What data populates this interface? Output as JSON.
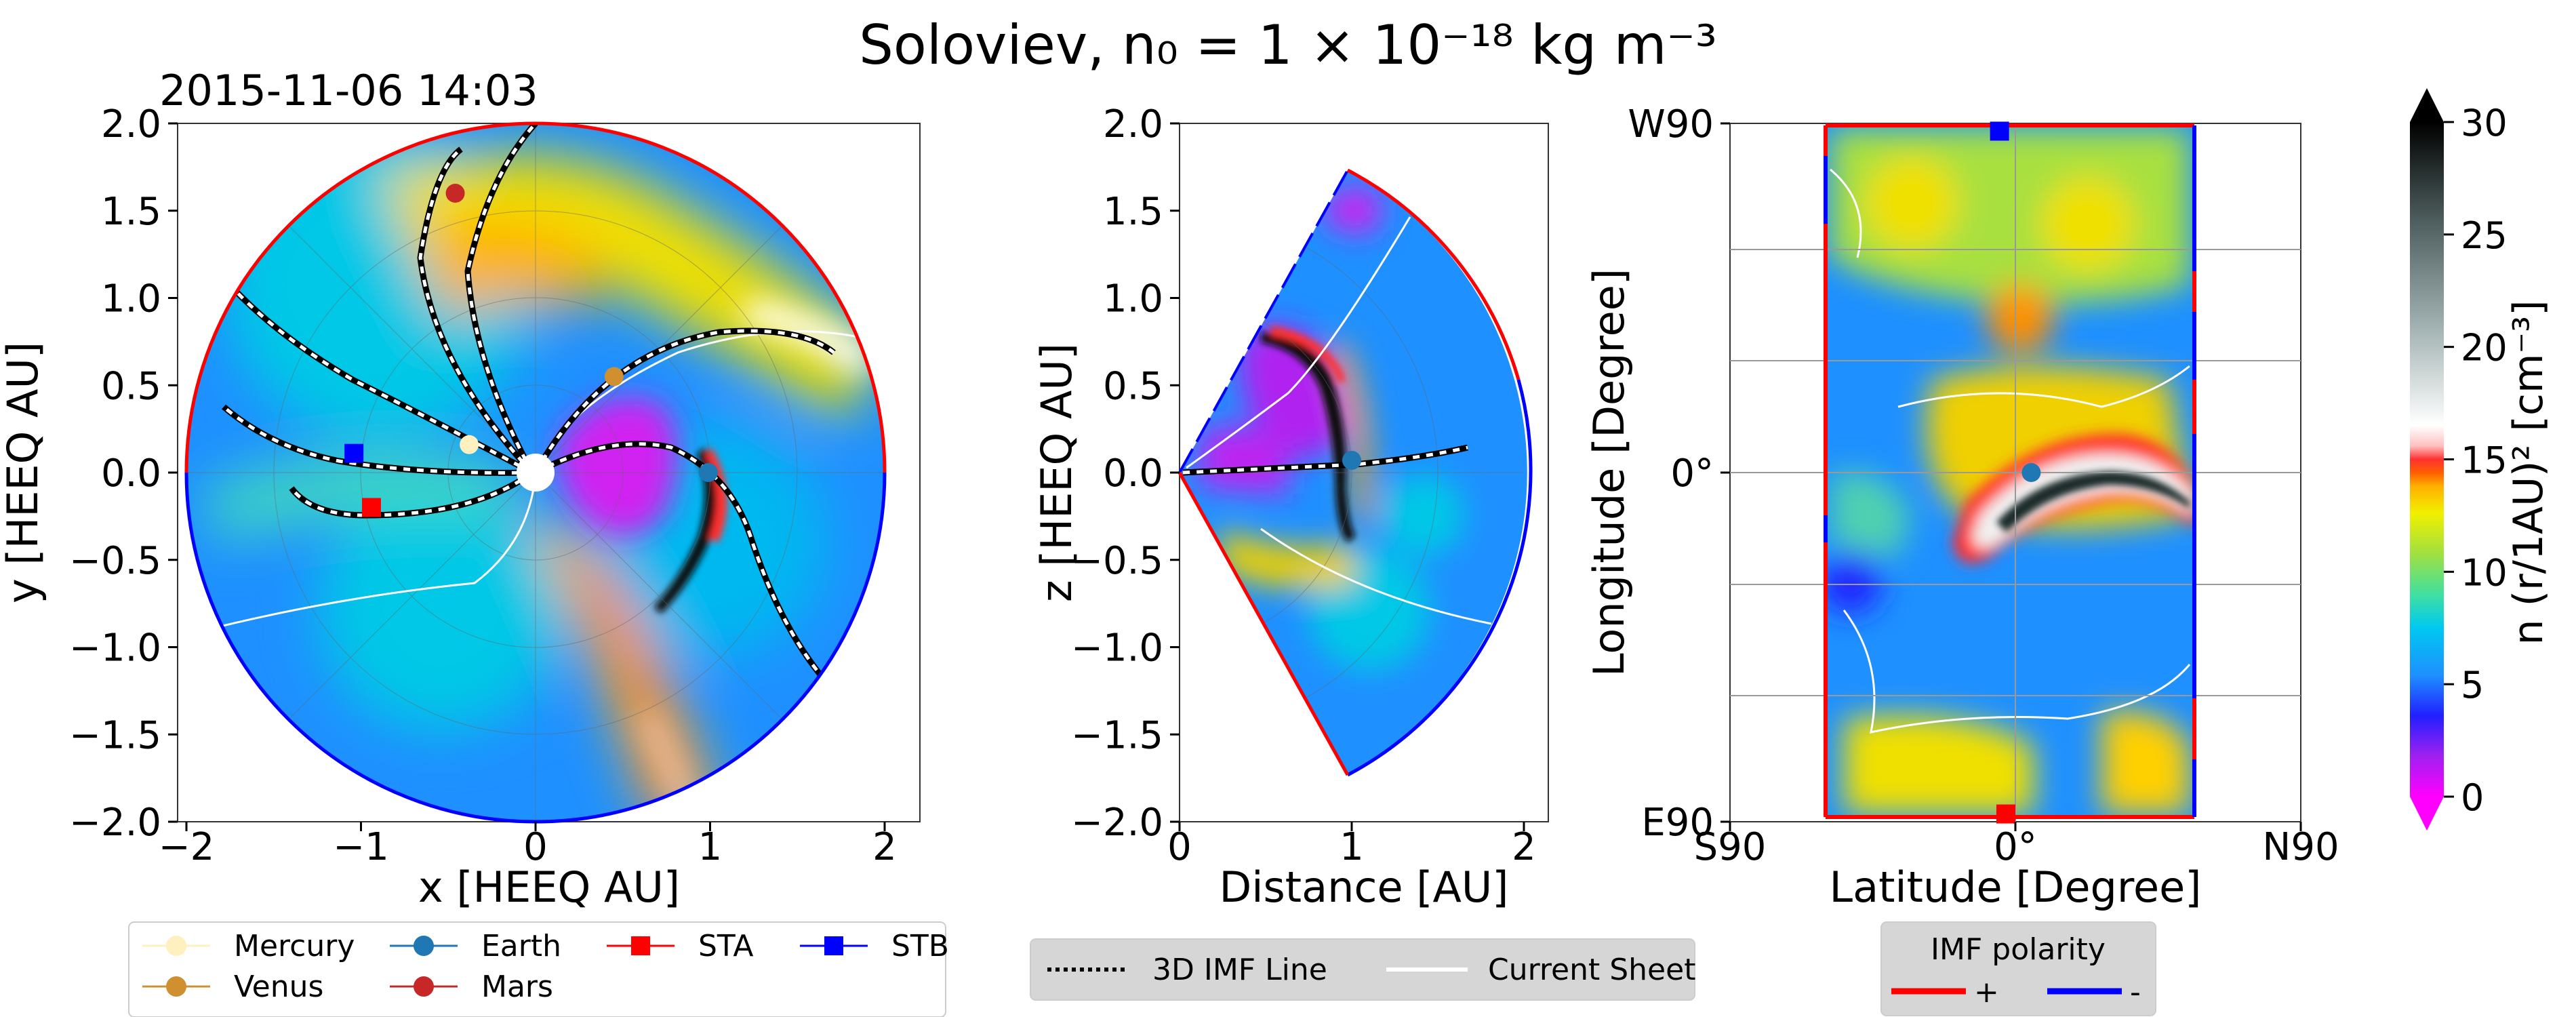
{
  "figure": {
    "title": "Soloviev,  n₀ = 1 × 10⁻¹⁸ kg m⁻³",
    "timestamp": "2015-11-06 14:03"
  },
  "colorbar": {
    "label": "n (r/1AU)²  [cm⁻³]",
    "ticks": [
      "0",
      "5",
      "10",
      "15",
      "20",
      "25",
      "30"
    ],
    "range": [
      0,
      30
    ]
  },
  "legends": {
    "bodies": [
      {
        "label": "Mercury",
        "color": "#fff0c0",
        "marker": "circle"
      },
      {
        "label": "Venus",
        "color": "#d09030",
        "marker": "circle"
      },
      {
        "label": "Earth",
        "color": "#1f77b4",
        "marker": "circle"
      },
      {
        "label": "Mars",
        "color": "#c62828",
        "marker": "circle"
      },
      {
        "label": "STA",
        "color": "#ff0000",
        "marker": "square"
      },
      {
        "label": "STB",
        "color": "#0000ff",
        "marker": "square"
      }
    ],
    "lines": [
      {
        "label": "3D IMF Line",
        "style": "dotted"
      },
      {
        "label": "Current Sheet",
        "style": "solid-white"
      }
    ],
    "polarity": {
      "title": "IMF polarity",
      "items": [
        {
          "label": "+",
          "color": "#ff0000"
        },
        {
          "label": "-",
          "color": "#0000ff"
        }
      ]
    }
  },
  "chart_data": [
    {
      "type": "heatmap",
      "panel": "equatorial plane",
      "xlabel": "x [HEEQ AU]",
      "ylabel": "y [HEEQ AU]",
      "xlim": [
        -2.2,
        2.2
      ],
      "ylim": [
        -2.0,
        2.0
      ],
      "xticks": [
        "−2",
        "−1",
        "0",
        "1",
        "2"
      ],
      "yticks": [
        "−2.0",
        "−1.5",
        "−1.0",
        "−0.5",
        "0.0",
        "0.5",
        "1.0",
        "1.5",
        "2.0"
      ],
      "bodies": [
        {
          "name": "Mercury",
          "x": -0.38,
          "y": 0.16
        },
        {
          "name": "Venus",
          "x": 0.45,
          "y": 0.55
        },
        {
          "name": "Earth",
          "x": 0.99,
          "y": 0.0
        },
        {
          "name": "Mars",
          "x": -0.46,
          "y": 1.6
        },
        {
          "name": "STA",
          "x": -0.94,
          "y": -0.2
        },
        {
          "name": "STB",
          "x": -1.04,
          "y": 0.11
        }
      ]
    },
    {
      "type": "heatmap",
      "panel": "meridional plane",
      "xlabel": "Distance [AU]",
      "ylabel": "z [HEEQ AU]",
      "xlim": [
        0,
        2.1
      ],
      "ylim": [
        -2.0,
        2.0
      ],
      "xticks": [
        "0",
        "1",
        "2"
      ],
      "yticks": [
        "−2.0",
        "−1.5",
        "−1.0",
        "−0.5",
        "0.0",
        "0.5",
        "1.0",
        "1.5",
        "2.0"
      ],
      "bodies": [
        {
          "name": "Earth",
          "x": 1.0,
          "y": 0.07
        }
      ]
    },
    {
      "type": "heatmap",
      "panel": "1 AU sphere",
      "xlabel": "Latitude [Degree]",
      "ylabel": "Longitude [Degree]",
      "xticks": [
        "S90",
        "0°",
        "N90"
      ],
      "yticks": [
        "E90",
        "0°",
        "W90"
      ],
      "bodies": [
        {
          "name": "Earth",
          "lat": 5,
          "lon": 0
        },
        {
          "name": "STA",
          "lat": -3,
          "lon": -88
        },
        {
          "name": "STB",
          "lat": -5,
          "lon": 88
        }
      ]
    }
  ]
}
